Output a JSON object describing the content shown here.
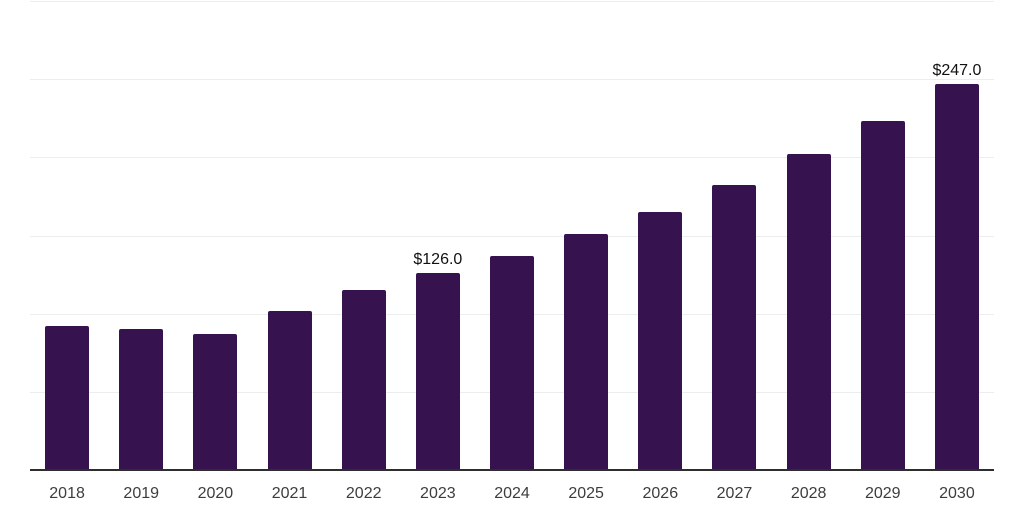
{
  "chart_data": {
    "type": "bar",
    "title": "",
    "xlabel": "",
    "ylabel": "",
    "categories": [
      "2018",
      "2019",
      "2020",
      "2021",
      "2022",
      "2023",
      "2024",
      "2025",
      "2026",
      "2027",
      "2028",
      "2029",
      "2030"
    ],
    "values": [
      92,
      90,
      87,
      102,
      115,
      126,
      137,
      151,
      165,
      182,
      202,
      223,
      247
    ],
    "annotations": [
      {
        "category": "2023",
        "text": "$126.0"
      },
      {
        "category": "2030",
        "text": "$247.0"
      }
    ],
    "ylim": [
      0,
      300
    ],
    "gridline_interval": 50,
    "grid": "horizontal-only",
    "legend_position": "none",
    "y_axis_tick_labels_visible": false,
    "colors": {
      "bar": "#36124E",
      "gridline": "#ededed",
      "axis_line": "#2e2e2e",
      "value_label": "#111111",
      "tick_label": "#3d3d3d",
      "background": "#ffffff"
    }
  }
}
